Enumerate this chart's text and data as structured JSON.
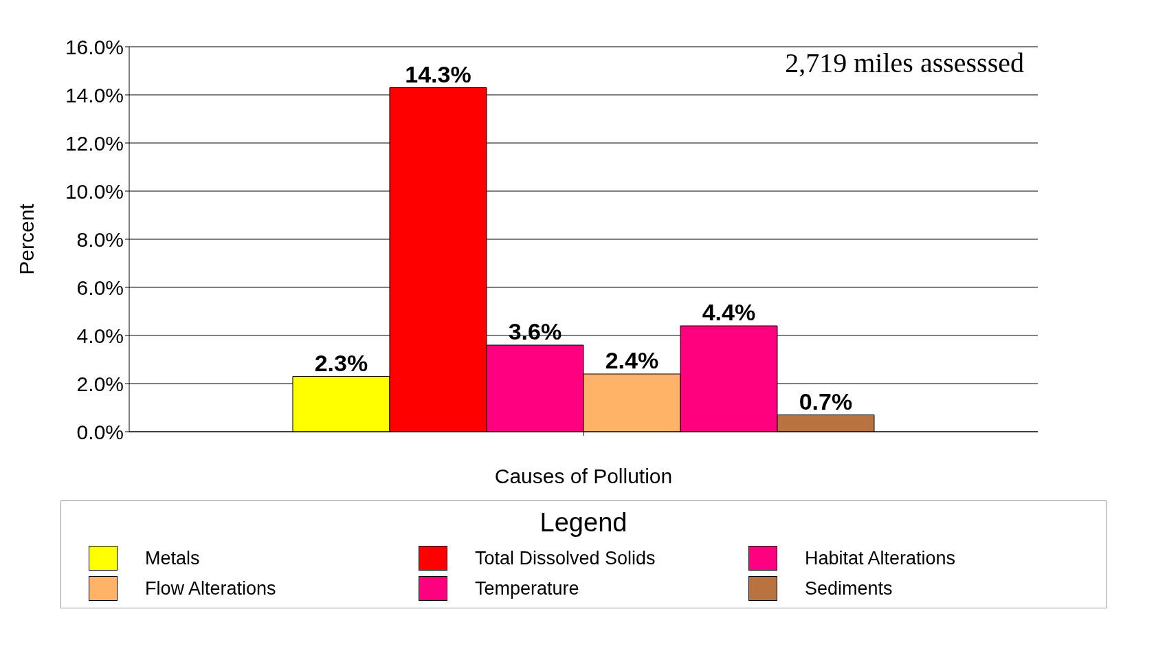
{
  "chart_data": {
    "type": "bar",
    "categories": [
      null
    ],
    "xlabel": "Causes of Pollution",
    "ylabel": "Percent",
    "legend_title": "Legend",
    "annotations": [
      "2,719 miles assesssed"
    ],
    "series": [
      {
        "name": "Metals",
        "color": "#ffff00",
        "values": [
          2.3
        ],
        "value_labels": [
          "2.3%"
        ]
      },
      {
        "name": "Total Dissolved Solids",
        "color": "#ff0000",
        "values": [
          14.3
        ],
        "value_labels": [
          "14.3%"
        ]
      },
      {
        "name": "Habitat Alterations",
        "color": "#ff0080",
        "values": [
          3.6
        ],
        "value_labels": [
          "3.6%"
        ]
      },
      {
        "name": "Flow Alterations",
        "color": "#ffb366",
        "values": [
          2.4
        ],
        "value_labels": [
          "2.4%"
        ]
      },
      {
        "name": "Temperature",
        "color": "#ff007f",
        "values": [
          4.4
        ],
        "value_labels": [
          "4.4%"
        ]
      },
      {
        "name": "Sediments",
        "color": "#b87340",
        "values": [
          0.7
        ],
        "value_labels": [
          "0.7%"
        ]
      }
    ],
    "ylim": [
      0,
      16
    ],
    "yticks": [
      {
        "value": 0,
        "label": "0.0%"
      },
      {
        "value": 2,
        "label": "2.0%"
      },
      {
        "value": 4,
        "label": "4.0%"
      },
      {
        "value": 6,
        "label": "6.0%"
      },
      {
        "value": 8,
        "label": "8.0%"
      },
      {
        "value": 10,
        "label": "10.0%"
      },
      {
        "value": 12,
        "label": "12.0%"
      },
      {
        "value": 14,
        "label": "14.0%"
      },
      {
        "value": 16,
        "label": "16.0%"
      }
    ],
    "grid": "y",
    "legend": "bottom"
  }
}
